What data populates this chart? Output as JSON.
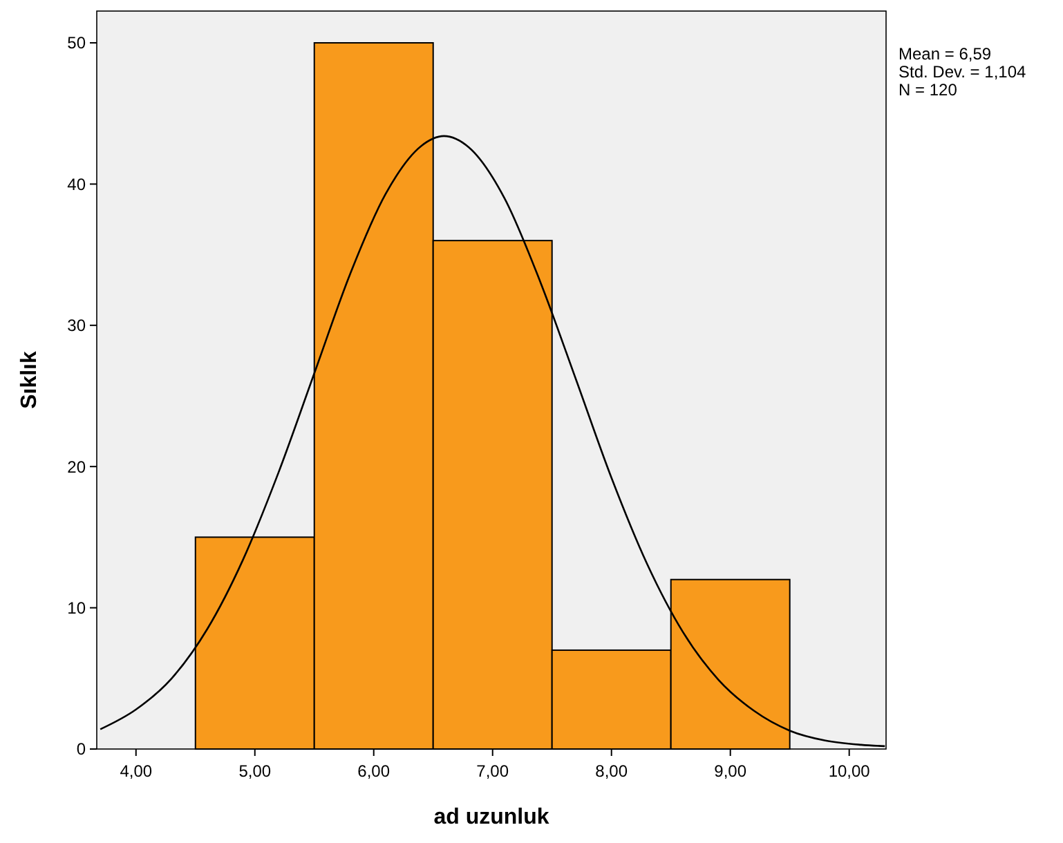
{
  "chart_data": {
    "type": "histogram",
    "xlabel": "ad uzunluk",
    "ylabel": "Sıklık",
    "bins": [
      4.5,
      5.5,
      6.5,
      7.5,
      8.5,
      9.5
    ],
    "values": [
      15,
      50,
      36,
      7,
      12
    ],
    "color": "#f89a1c",
    "xlim": [
      3.67,
      10.31
    ],
    "xticks": [
      {
        "value": 4,
        "label": "4,00"
      },
      {
        "value": 5,
        "label": "5,00"
      },
      {
        "value": 6,
        "label": "6,00"
      },
      {
        "value": 7,
        "label": "7,00"
      },
      {
        "value": 8,
        "label": "8,00"
      },
      {
        "value": 9,
        "label": "9,00"
      },
      {
        "value": 10,
        "label": "10,00"
      }
    ],
    "ylim": [
      0,
      52.25
    ],
    "yticks": [
      0,
      10,
      20,
      30,
      40,
      50
    ],
    "series": [
      {
        "type": "line",
        "color": "#000000",
        "x": [
          3.7,
          4.0,
          4.3,
          4.6,
          4.9,
          5.2,
          5.5,
          5.8,
          6.1,
          6.4,
          6.59,
          6.8,
          7.1,
          7.4,
          7.7,
          8.0,
          8.3,
          8.6,
          8.9,
          9.2,
          9.5,
          9.8,
          10.1,
          10.3
        ],
        "values": [
          1.4,
          2.8,
          5,
          8.5,
          13.4,
          19.6,
          26.6,
          33.6,
          39.3,
          42.7,
          43.4,
          42.6,
          39,
          33.1,
          26.2,
          19.2,
          13.1,
          8.3,
          4.9,
          2.7,
          1.3,
          0.6,
          0.3,
          0.2
        ]
      }
    ],
    "grid": false,
    "annotations": [
      "Mean = 6,59",
      "Std. Dev. = 1,104",
      "N = 120"
    ]
  }
}
